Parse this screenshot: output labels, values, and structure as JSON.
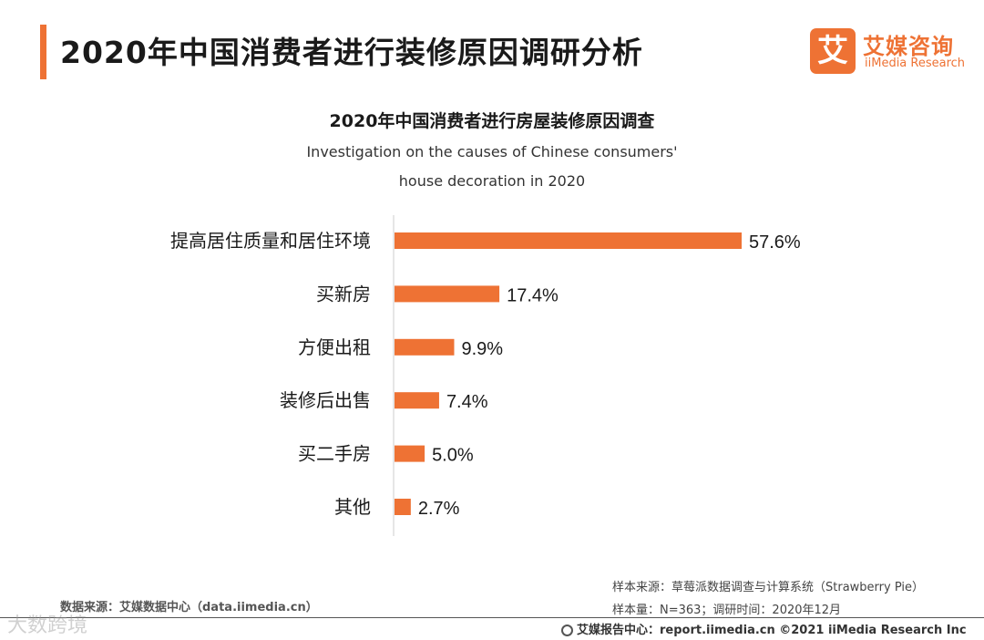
{
  "header": {
    "title": "2020年中国消费者进行装修原因调研分析"
  },
  "logo": {
    "mark": "艾",
    "name_cn": "艾媒咨询",
    "name_en": "iiMedia Research"
  },
  "colors": {
    "accent": "#ee7234",
    "bar": "#ee7234",
    "text": "#1a1a1a",
    "axis": "#cccccc"
  },
  "chart_data": {
    "type": "bar",
    "orientation": "horizontal",
    "title": "2020年中国消费者进行房屋装修原因调查",
    "subtitle_line1": "Investigation on the causes of Chinese consumers'",
    "subtitle_line2": "house decoration in 2020",
    "categories": [
      "提高居住质量和居住环境",
      "买新房",
      "方便出租",
      "装修后出售",
      "买二手房",
      "其他"
    ],
    "values": [
      57.6,
      17.4,
      9.9,
      7.4,
      5.0,
      2.7
    ],
    "value_labels": [
      "57.6%",
      "17.4%",
      "9.9%",
      "7.4%",
      "5.0%",
      "2.7%"
    ],
    "unit": "%",
    "xlim": [
      0,
      60
    ],
    "xlabel": "",
    "ylabel": "",
    "grid": false
  },
  "footer": {
    "source": "数据来源：艾媒数据中心（data.iimedia.cn）",
    "sample_source": "样本来源：草莓派数据调查与计算系统（Strawberry Pie）",
    "sample_size": "样本量：N=363；调研时间：2020年12月",
    "report_center": "艾媒报告中心：report.iimedia.cn  ©2021  iiMedia Research  Inc",
    "watermark": "大数跨境"
  }
}
